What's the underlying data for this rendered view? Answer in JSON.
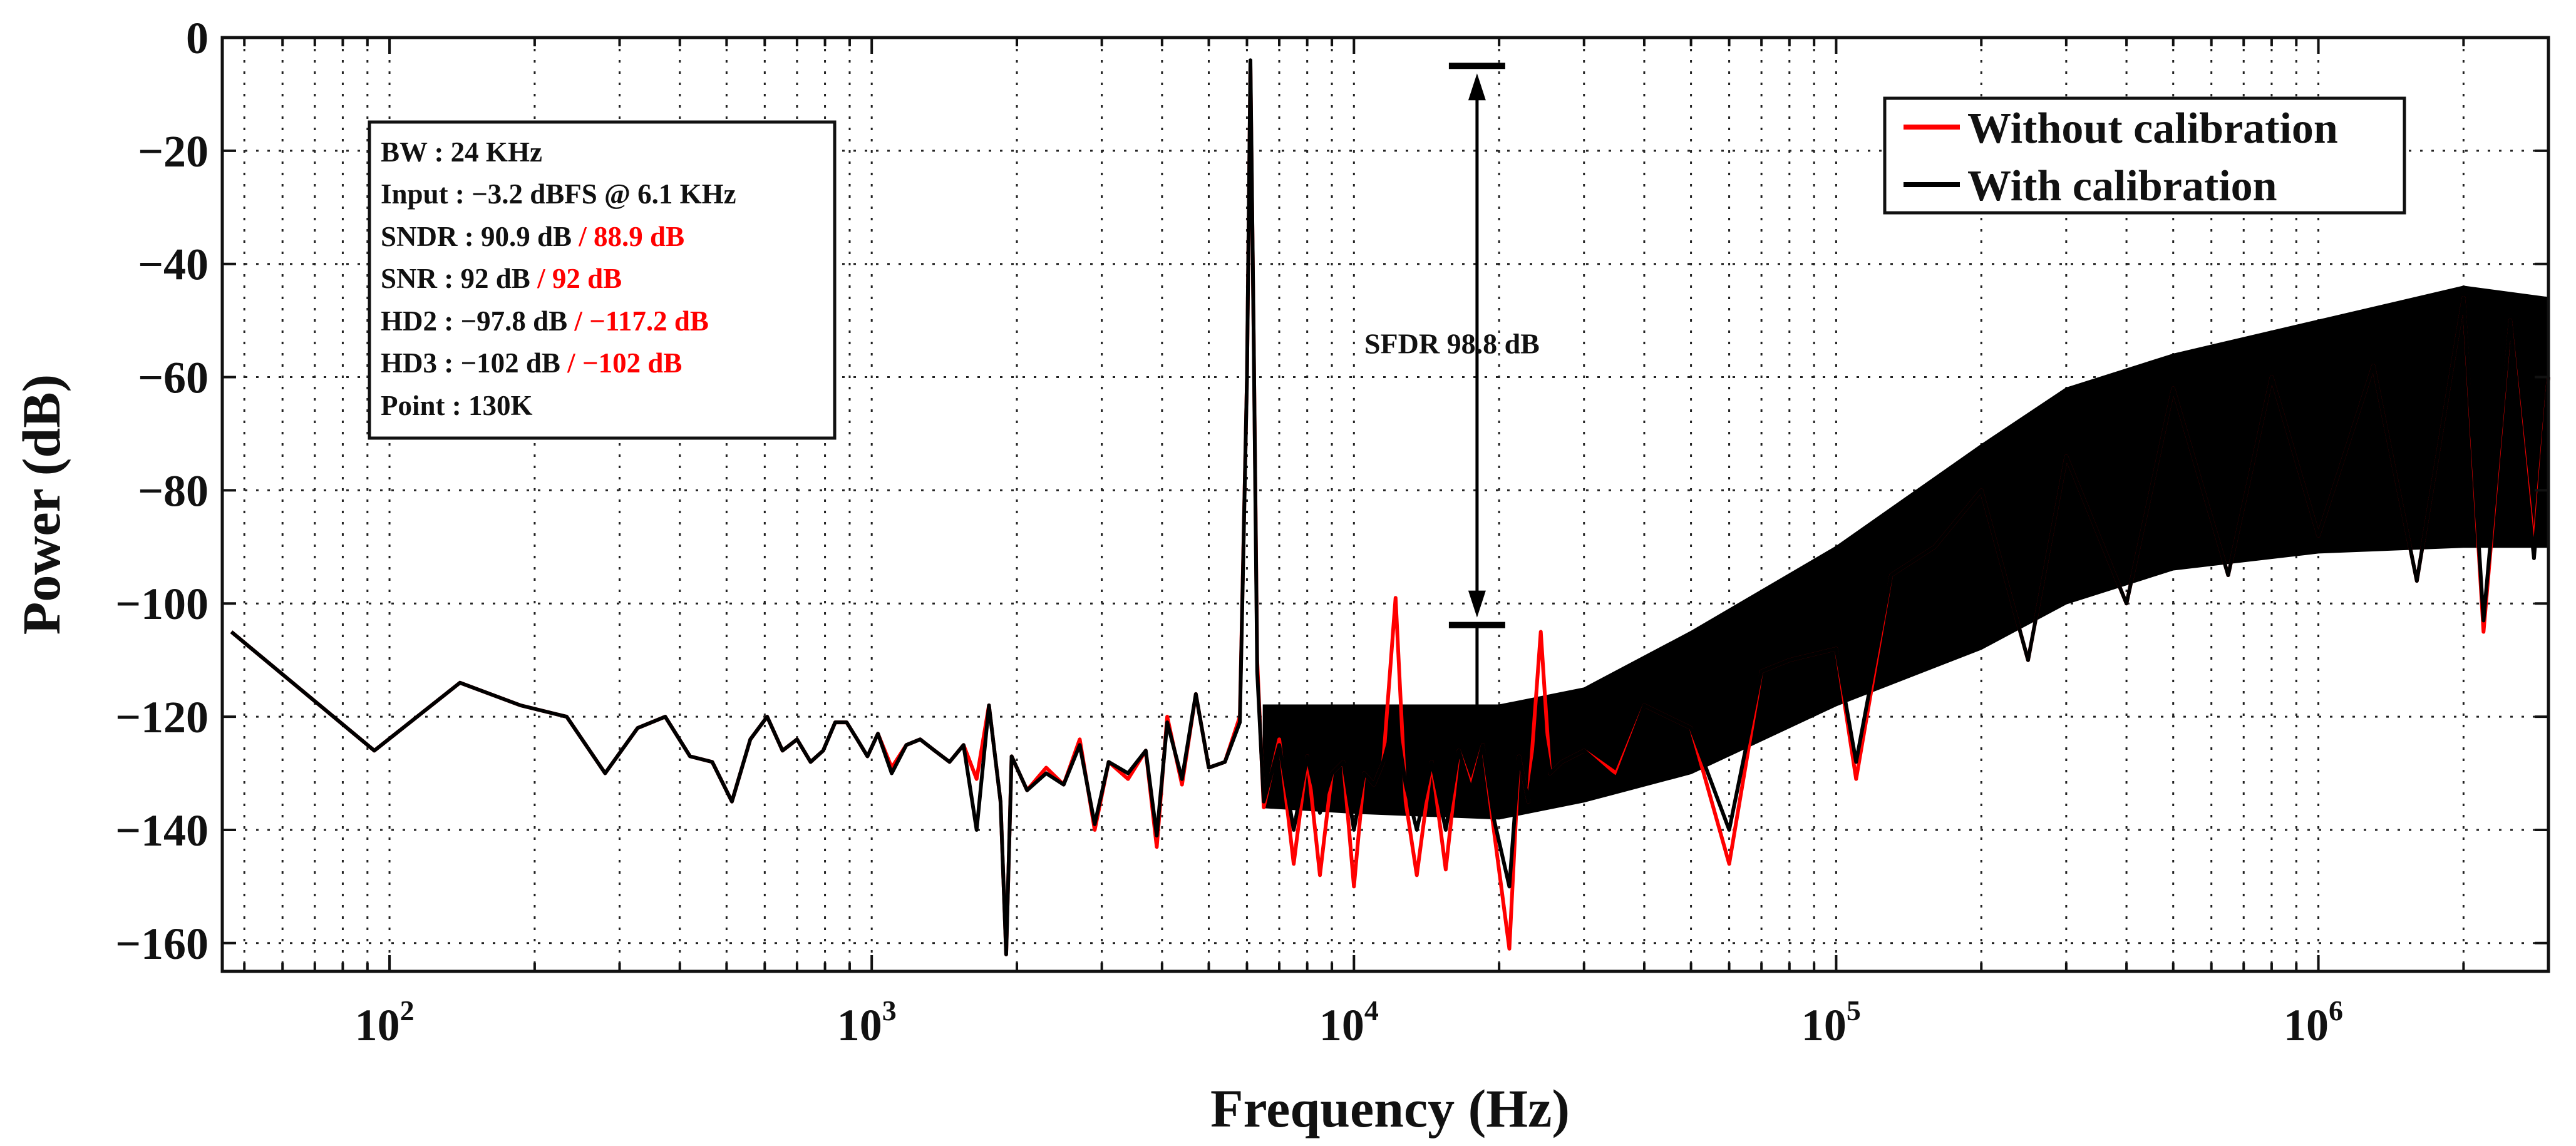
{
  "chart_data": {
    "type": "line",
    "title": "",
    "xlabel": "Frequency (Hz)",
    "ylabel": "Power (dB)",
    "xscale": "log",
    "xlim": [
      45,
      3000000
    ],
    "ylim": [
      -165,
      0
    ],
    "yticks": [
      0,
      -20,
      -40,
      -60,
      -80,
      -100,
      -120,
      -140,
      -160
    ],
    "ytick_labels": [
      "0",
      "−20",
      "−40",
      "−60",
      "−80",
      "−100",
      "−120",
      "−140",
      "−160"
    ],
    "xticks": [
      {
        "value": 100,
        "base": "10",
        "exp": "2"
      },
      {
        "value": 1000,
        "base": "10",
        "exp": "3"
      },
      {
        "value": 10000,
        "base": "10",
        "exp": "4"
      },
      {
        "value": 100000,
        "base": "10",
        "exp": "5"
      },
      {
        "value": 1000000,
        "base": "10",
        "exp": "6"
      }
    ],
    "grid": true,
    "legend_position": "top-right",
    "series": [
      {
        "name": "Without calibration",
        "color": "#ff0000",
        "points": [
          [
            47,
            -105
          ],
          [
            93,
            -126
          ],
          [
            140,
            -114
          ],
          [
            187,
            -118
          ],
          [
            233,
            -120
          ],
          [
            280,
            -130
          ],
          [
            327,
            -122
          ],
          [
            373,
            -120
          ],
          [
            420,
            -127
          ],
          [
            467,
            -128
          ],
          [
            513,
            -135
          ],
          [
            560,
            -124
          ],
          [
            607,
            -120
          ],
          [
            653,
            -126
          ],
          [
            700,
            -124
          ],
          [
            747,
            -128
          ],
          [
            793,
            -126
          ],
          [
            840,
            -121
          ],
          [
            887,
            -121
          ],
          [
            933,
            -124
          ],
          [
            980,
            -127
          ],
          [
            1030,
            -123
          ],
          [
            1100,
            -129
          ],
          [
            1180,
            -125
          ],
          [
            1260,
            -124
          ],
          [
            1350,
            -126
          ],
          [
            1450,
            -128
          ],
          [
            1550,
            -125
          ],
          [
            1650,
            -131
          ],
          [
            1750,
            -118
          ],
          [
            1850,
            -135
          ],
          [
            1900,
            -162
          ],
          [
            1950,
            -127
          ],
          [
            2100,
            -133
          ],
          [
            2300,
            -129
          ],
          [
            2500,
            -132
          ],
          [
            2700,
            -124
          ],
          [
            2900,
            -140
          ],
          [
            3100,
            -128
          ],
          [
            3400,
            -131
          ],
          [
            3700,
            -126
          ],
          [
            3900,
            -143
          ],
          [
            4100,
            -120
          ],
          [
            4400,
            -132
          ],
          [
            4700,
            -116
          ],
          [
            5000,
            -129
          ],
          [
            5400,
            -128
          ],
          [
            5800,
            -120
          ],
          [
            6000,
            -60
          ],
          [
            6100,
            -5
          ],
          [
            6200,
            -55
          ],
          [
            6300,
            -110
          ],
          [
            6500,
            -136
          ],
          [
            7000,
            -124
          ],
          [
            7500,
            -146
          ],
          [
            8000,
            -127
          ],
          [
            8500,
            -148
          ],
          [
            9000,
            -130
          ],
          [
            9500,
            -128
          ],
          [
            10000,
            -150
          ],
          [
            10500,
            -130
          ],
          [
            11000,
            -132
          ],
          [
            11500,
            -128
          ],
          [
            12200,
            -99
          ],
          [
            12800,
            -135
          ],
          [
            13500,
            -148
          ],
          [
            14500,
            -128
          ],
          [
            15500,
            -147
          ],
          [
            16500,
            -126
          ],
          [
            17500,
            -132
          ],
          [
            18500,
            -125
          ],
          [
            19500,
            -140
          ],
          [
            21000,
            -161
          ],
          [
            22000,
            -127
          ],
          [
            23000,
            -135
          ],
          [
            24400,
            -105
          ],
          [
            25500,
            -130
          ],
          [
            27000,
            -128
          ],
          [
            30000,
            -126
          ],
          [
            35000,
            -130
          ],
          [
            40000,
            -118
          ],
          [
            50000,
            -122
          ],
          [
            60000,
            -146
          ],
          [
            70000,
            -112
          ],
          [
            80000,
            -110
          ],
          [
            100000,
            -108
          ],
          [
            110000,
            -131
          ],
          [
            130000,
            -95
          ],
          [
            160000,
            -90
          ],
          [
            200000,
            -80
          ],
          [
            250000,
            -110
          ],
          [
            300000,
            -74
          ],
          [
            400000,
            -100
          ],
          [
            500000,
            -62
          ],
          [
            650000,
            -95
          ],
          [
            800000,
            -60
          ],
          [
            1000000,
            -88
          ],
          [
            1300000,
            -58
          ],
          [
            1600000,
            -96
          ],
          [
            2000000,
            -46
          ],
          [
            2200000,
            -105
          ],
          [
            2500000,
            -50
          ],
          [
            2800000,
            -90
          ],
          [
            3000000,
            -60
          ]
        ]
      },
      {
        "name": "With calibration",
        "color": "#000000",
        "points": [
          [
            47,
            -105
          ],
          [
            93,
            -126
          ],
          [
            140,
            -114
          ],
          [
            187,
            -118
          ],
          [
            233,
            -120
          ],
          [
            280,
            -130
          ],
          [
            327,
            -122
          ],
          [
            373,
            -120
          ],
          [
            420,
            -127
          ],
          [
            467,
            -128
          ],
          [
            513,
            -135
          ],
          [
            560,
            -124
          ],
          [
            607,
            -120
          ],
          [
            653,
            -126
          ],
          [
            700,
            -124
          ],
          [
            747,
            -128
          ],
          [
            793,
            -126
          ],
          [
            840,
            -121
          ],
          [
            887,
            -121
          ],
          [
            933,
            -124
          ],
          [
            980,
            -127
          ],
          [
            1030,
            -123
          ],
          [
            1100,
            -130
          ],
          [
            1180,
            -125
          ],
          [
            1260,
            -124
          ],
          [
            1350,
            -126
          ],
          [
            1450,
            -128
          ],
          [
            1550,
            -125
          ],
          [
            1650,
            -140
          ],
          [
            1750,
            -118
          ],
          [
            1850,
            -135
          ],
          [
            1900,
            -162
          ],
          [
            1950,
            -127
          ],
          [
            2100,
            -133
          ],
          [
            2300,
            -130
          ],
          [
            2500,
            -132
          ],
          [
            2700,
            -125
          ],
          [
            2900,
            -139
          ],
          [
            3100,
            -128
          ],
          [
            3400,
            -130
          ],
          [
            3700,
            -126
          ],
          [
            3900,
            -141
          ],
          [
            4100,
            -121
          ],
          [
            4400,
            -131
          ],
          [
            4700,
            -116
          ],
          [
            5000,
            -129
          ],
          [
            5400,
            -128
          ],
          [
            5800,
            -121
          ],
          [
            6000,
            -60
          ],
          [
            6100,
            -4
          ],
          [
            6200,
            -55
          ],
          [
            6300,
            -112
          ],
          [
            6500,
            -135
          ],
          [
            7000,
            -125
          ],
          [
            7500,
            -140
          ],
          [
            8000,
            -127
          ],
          [
            8500,
            -137
          ],
          [
            9000,
            -130
          ],
          [
            9500,
            -128
          ],
          [
            10000,
            -140
          ],
          [
            10500,
            -130
          ],
          [
            11000,
            -132
          ],
          [
            11500,
            -128
          ],
          [
            12200,
            -120
          ],
          [
            12800,
            -132
          ],
          [
            13500,
            -140
          ],
          [
            14500,
            -128
          ],
          [
            15500,
            -140
          ],
          [
            16500,
            -126
          ],
          [
            17500,
            -133
          ],
          [
            18500,
            -125
          ],
          [
            19500,
            -138
          ],
          [
            21000,
            -150
          ],
          [
            22000,
            -127
          ],
          [
            23000,
            -135
          ],
          [
            24400,
            -120
          ],
          [
            25500,
            -130
          ],
          [
            27000,
            -128
          ],
          [
            30000,
            -126
          ],
          [
            35000,
            -131
          ],
          [
            40000,
            -118
          ],
          [
            50000,
            -122
          ],
          [
            60000,
            -140
          ],
          [
            70000,
            -112
          ],
          [
            80000,
            -110
          ],
          [
            100000,
            -108
          ],
          [
            110000,
            -128
          ],
          [
            130000,
            -95
          ],
          [
            160000,
            -90
          ],
          [
            200000,
            -80
          ],
          [
            250000,
            -110
          ],
          [
            300000,
            -74
          ],
          [
            400000,
            -100
          ],
          [
            500000,
            -62
          ],
          [
            650000,
            -95
          ],
          [
            800000,
            -60
          ],
          [
            1000000,
            -88
          ],
          [
            1300000,
            -58
          ],
          [
            1600000,
            -96
          ],
          [
            2000000,
            -46
          ],
          [
            2200000,
            -103
          ],
          [
            2500000,
            -50
          ],
          [
            2800000,
            -92
          ],
          [
            3000000,
            -60
          ]
        ]
      }
    ],
    "noise_band": {
      "description_series": "With calibration",
      "lower": [
        [
          6500,
          -136
        ],
        [
          10000,
          -137
        ],
        [
          20000,
          -138
        ],
        [
          30000,
          -135
        ],
        [
          50000,
          -130
        ],
        [
          100000,
          -118
        ],
        [
          200000,
          -108
        ],
        [
          300000,
          -100
        ],
        [
          500000,
          -94
        ],
        [
          1000000,
          -91
        ],
        [
          2000000,
          -90
        ],
        [
          3000000,
          -90
        ]
      ],
      "upper": [
        [
          6500,
          -118
        ],
        [
          10000,
          -118
        ],
        [
          20000,
          -118
        ],
        [
          30000,
          -115
        ],
        [
          50000,
          -105
        ],
        [
          100000,
          -90
        ],
        [
          200000,
          -72
        ],
        [
          300000,
          -62
        ],
        [
          500000,
          -56
        ],
        [
          1000000,
          -50
        ],
        [
          2000000,
          -44
        ],
        [
          3000000,
          -46
        ]
      ]
    },
    "annotations": {
      "info_lines": [
        {
          "black": "BW : 24 KHz",
          "red": ""
        },
        {
          "black": "Input : −3.2 dBFS @ 6.1 KHz",
          "red": ""
        },
        {
          "black": "SNDR : 90.9 dB",
          "red": " / 88.9 dB"
        },
        {
          "black": "SNR : 92 dB ",
          "red": " / 92 dB"
        },
        {
          "black": "HD2 : −97.8 dB",
          "red": " / −117.2 dB"
        },
        {
          "black": "HD3 : −102 dB",
          "red": " / −102 dB"
        },
        {
          "black": "Point : 130K",
          "red": ""
        }
      ],
      "sfdr_label": "SFDR 98.8 dB",
      "sfdr_top_db": -5,
      "sfdr_bottom_db": -103.8,
      "sfdr_freq": 18000,
      "black_color": "#000000",
      "red_color": "#ff0000"
    }
  }
}
